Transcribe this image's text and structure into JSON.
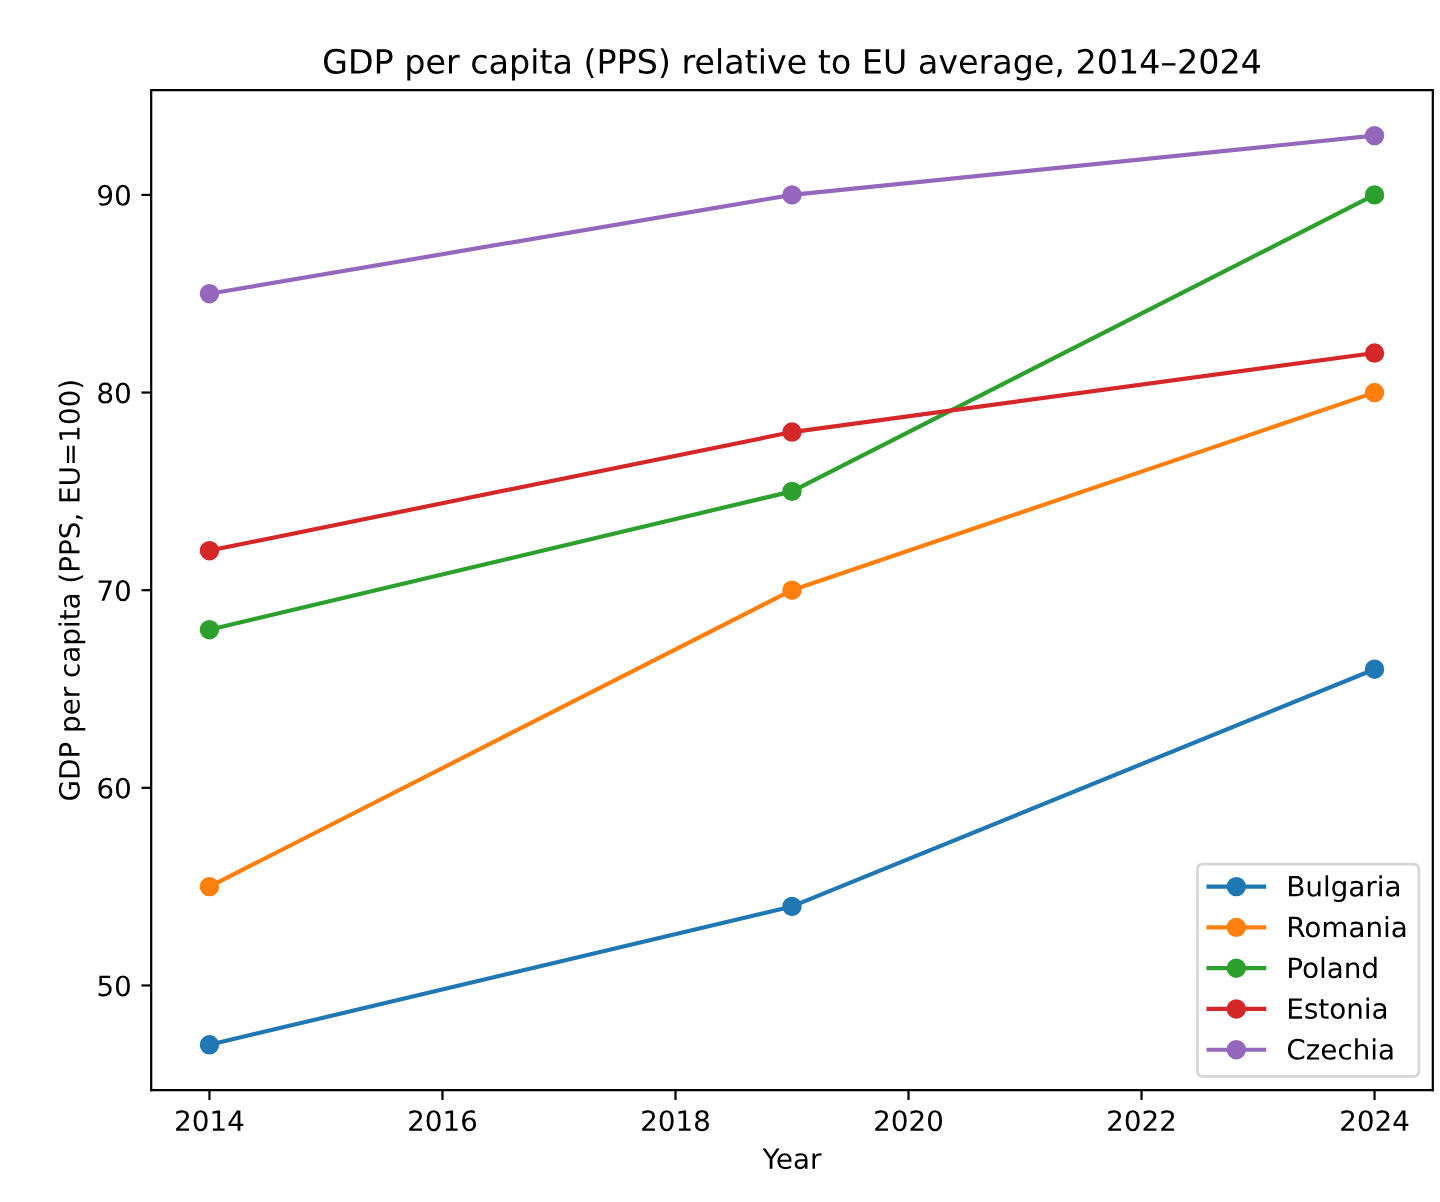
{
  "chart_data": {
    "type": "line",
    "title": "GDP per capita (PPS) relative to EU average, 2014–2024",
    "xlabel": "Year",
    "ylabel": "GDP per capita (PPS, EU=100)",
    "x": [
      2014,
      2019,
      2024
    ],
    "series": [
      {
        "name": "Bulgaria",
        "color": "#1f77b4",
        "values": [
          47,
          54,
          66
        ]
      },
      {
        "name": "Romania",
        "color": "#ff7f0e",
        "values": [
          55,
          70,
          80
        ]
      },
      {
        "name": "Poland",
        "color": "#2ca02c",
        "values": [
          68,
          75,
          90
        ]
      },
      {
        "name": "Estonia",
        "color": "#d62728",
        "values": [
          72,
          78,
          82
        ]
      },
      {
        "name": "Czechia",
        "color": "#9467bd",
        "values": [
          85,
          90,
          93
        ]
      }
    ],
    "xlim": [
      2013.5,
      2024.5
    ],
    "xticks": [
      2014,
      2016,
      2018,
      2020,
      2022,
      2024
    ],
    "ylim": [
      44.7,
      95.3
    ],
    "yticks": [
      50,
      60,
      70,
      80,
      90
    ],
    "marker": "circle",
    "line_style": "solid",
    "legend": "bottom right",
    "grid": false
  }
}
